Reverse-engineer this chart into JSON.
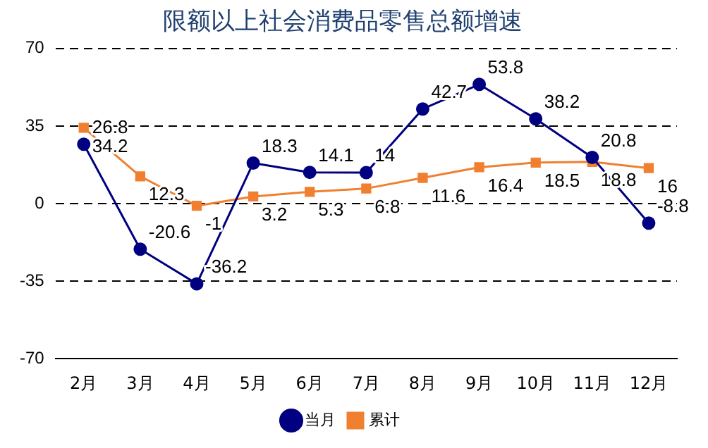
{
  "chart_data": {
    "type": "line",
    "title": "限额以上社会消费品零售总额增速",
    "categories": [
      "2月",
      "3月",
      "4月",
      "5月",
      "6月",
      "7月",
      "8月",
      "9月",
      "10月",
      "11月",
      "12月"
    ],
    "series": [
      {
        "name": "当月",
        "color": "#000080",
        "marker": "circle",
        "values": [
          26.8,
          -20.6,
          -36.2,
          18.3,
          14.1,
          14,
          42.7,
          53.8,
          38.2,
          20.8,
          -8.8
        ]
      },
      {
        "name": "累计",
        "color": "#f08030",
        "marker": "square",
        "values": [
          34.2,
          12.3,
          -1,
          3.2,
          5.3,
          6.8,
          11.6,
          16.4,
          18.5,
          18.8,
          16
        ]
      }
    ],
    "ylim": [
      -70,
      70
    ],
    "yticks": [
      -70,
      -35,
      0,
      35,
      70
    ],
    "grid": "y",
    "legend": "bottom",
    "data_labels": true,
    "line_style": "solid"
  }
}
